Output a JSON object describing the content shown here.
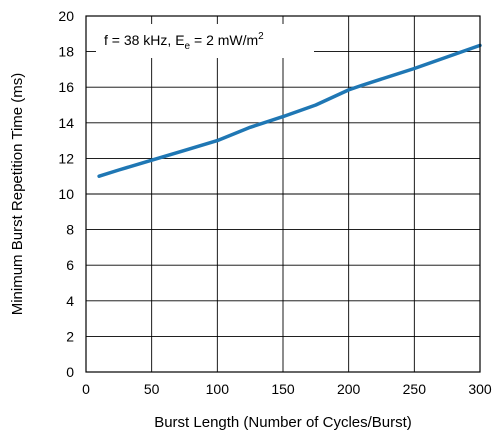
{
  "chart_data": {
    "type": "line",
    "title": "",
    "xlabel": "Burst Length (Number of Cycles/Burst)",
    "ylabel": "Minimum Burst Repetition Time (ms)",
    "xlim": [
      0,
      300
    ],
    "ylim": [
      0,
      20
    ],
    "xticks": [
      0,
      50,
      100,
      150,
      200,
      250,
      300
    ],
    "yticks": [
      0,
      2,
      4,
      6,
      8,
      10,
      12,
      14,
      16,
      18,
      20
    ],
    "grid": true,
    "legend": "none",
    "annotation": {
      "f_part": "f = 38 kHz, E",
      "sub": "e",
      "mid": " = 2 mW/m",
      "sup": "2"
    },
    "series": [
      {
        "color": "#1f77b4",
        "x": [
          10,
          25,
          50,
          75,
          100,
          125,
          150,
          175,
          200,
          210,
          250,
          300
        ],
        "y": [
          11.0,
          11.35,
          11.9,
          12.45,
          13.0,
          13.75,
          14.35,
          15.0,
          15.85,
          16.1,
          17.05,
          18.35
        ]
      }
    ]
  }
}
